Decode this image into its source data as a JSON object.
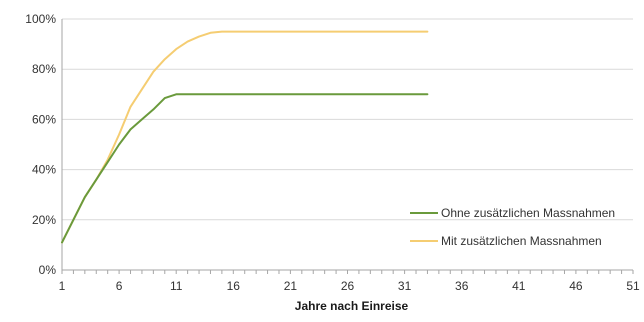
{
  "chart_data": {
    "type": "line",
    "title": "",
    "xlabel": "Jahre nach Einreise",
    "ylabel": "",
    "xlim": [
      1,
      51
    ],
    "ylim": [
      0,
      100
    ],
    "x_ticks": [
      1,
      6,
      11,
      16,
      21,
      26,
      31,
      36,
      41,
      46,
      51
    ],
    "y_ticks": [
      0,
      20,
      40,
      60,
      80,
      100
    ],
    "y_tick_labels": [
      "0%",
      "20%",
      "40%",
      "60%",
      "80%",
      "100%"
    ],
    "grid": "horizontal",
    "legend_position": "bottom-right",
    "series": [
      {
        "name": "Ohne zusätzlichen Massnahmen",
        "color": "#6a9a3c",
        "x": [
          1,
          2,
          3,
          4,
          5,
          6,
          7,
          8,
          9,
          10,
          11,
          12,
          13,
          14,
          15,
          16,
          17,
          18,
          19,
          20,
          21,
          22,
          23,
          24,
          25,
          26,
          27,
          28,
          29,
          30,
          31,
          32,
          33
        ],
        "y": [
          11,
          20,
          29,
          36,
          43,
          50,
          56,
          60,
          64,
          68.5,
          70,
          70,
          70,
          70,
          70,
          70,
          70,
          70,
          70,
          70,
          70,
          70,
          70,
          70,
          70,
          70,
          70,
          70,
          70,
          70,
          70,
          70,
          70
        ]
      },
      {
        "name": "Mit zusätzlichen Massnahmen",
        "color": "#f5cd72",
        "x": [
          1,
          2,
          3,
          4,
          5,
          6,
          7,
          8,
          9,
          10,
          11,
          12,
          13,
          14,
          15,
          16,
          17,
          18,
          19,
          20,
          21,
          22,
          23,
          24,
          25,
          26,
          27,
          28,
          29,
          30,
          31,
          32,
          33
        ],
        "y": [
          11,
          20,
          29,
          36,
          44,
          54,
          65,
          72,
          79,
          84,
          88,
          91,
          93,
          94.5,
          95,
          95,
          95,
          95,
          95,
          95,
          95,
          95,
          95,
          95,
          95,
          95,
          95,
          95,
          95,
          95,
          95,
          95,
          95
        ]
      }
    ]
  }
}
